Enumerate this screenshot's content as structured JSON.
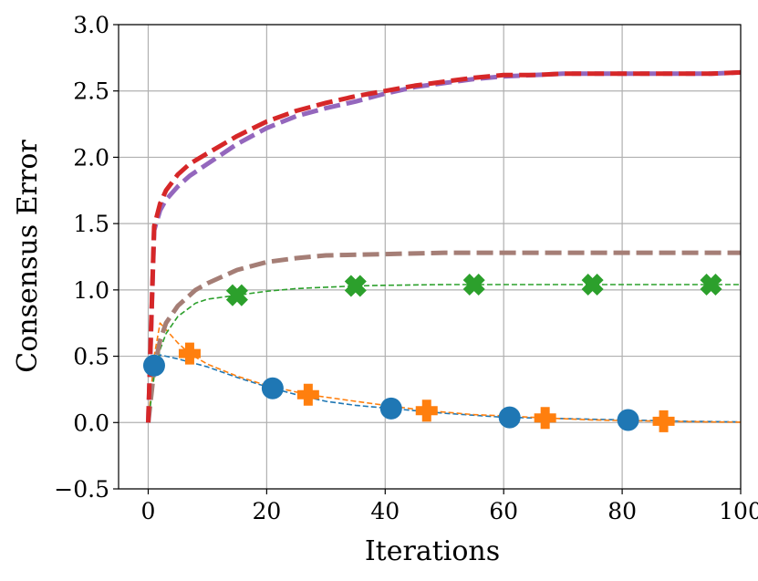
{
  "chart_data": {
    "type": "line",
    "title": "",
    "xlabel": "Iterations",
    "ylabel": "Consensus Error",
    "xlim": [
      -5,
      100
    ],
    "ylim": [
      -0.5,
      3.0
    ],
    "xticks": [
      0,
      20,
      40,
      60,
      80,
      100
    ],
    "yticks": [
      -0.5,
      0.0,
      0.5,
      1.0,
      1.5,
      2.0,
      2.5,
      3.0
    ],
    "xtick_labels": [
      "0",
      "20",
      "40",
      "60",
      "80",
      "100"
    ],
    "ytick_labels": [
      "−0.5",
      "0.0",
      "0.5",
      "1.0",
      "1.5",
      "2.0",
      "2.5",
      "3.0"
    ],
    "grid": true,
    "series": [
      {
        "name": "series-blue",
        "color": "#1f77b4",
        "style": "dashed-thin",
        "marker": "circle",
        "marker_x": [
          1,
          21,
          41,
          61,
          81
        ],
        "x": [
          0,
          1,
          2,
          5,
          10,
          15,
          20,
          25,
          30,
          35,
          40,
          50,
          60,
          70,
          80,
          90,
          100
        ],
        "y": [
          0.0,
          0.43,
          0.51,
          0.48,
          0.42,
          0.34,
          0.27,
          0.21,
          0.16,
          0.13,
          0.11,
          0.07,
          0.04,
          0.03,
          0.02,
          0.01,
          0.005
        ]
      },
      {
        "name": "series-orange",
        "color": "#ff7f0e",
        "style": "dashed-thin",
        "marker": "plus",
        "marker_x": [
          7,
          27,
          47,
          67,
          87
        ],
        "x": [
          0,
          1,
          2,
          5,
          7,
          10,
          15,
          20,
          27,
          35,
          40,
          47,
          55,
          60,
          67,
          75,
          80,
          87,
          95,
          100
        ],
        "y": [
          0.0,
          0.5,
          0.75,
          0.6,
          0.52,
          0.44,
          0.35,
          0.28,
          0.21,
          0.16,
          0.13,
          0.09,
          0.06,
          0.05,
          0.035,
          0.02,
          0.015,
          0.01,
          0.005,
          0.003
        ]
      },
      {
        "name": "series-green",
        "color": "#2ca02c",
        "style": "dashed-thin",
        "marker": "x",
        "marker_x": [
          15,
          35,
          55,
          75,
          95
        ],
        "x": [
          0,
          1,
          2,
          3,
          5,
          8,
          10,
          15,
          20,
          25,
          30,
          35,
          40,
          50,
          60,
          70,
          80,
          90,
          100
        ],
        "y": [
          0.0,
          0.35,
          0.55,
          0.67,
          0.8,
          0.9,
          0.93,
          0.96,
          0.99,
          1.01,
          1.02,
          1.03,
          1.035,
          1.04,
          1.04,
          1.04,
          1.04,
          1.04,
          1.04
        ]
      },
      {
        "name": "series-brown",
        "color": "#a57e76",
        "style": "dashed-thick",
        "marker": "",
        "marker_x": [],
        "x": [
          0,
          1,
          2,
          3,
          5,
          8,
          10,
          15,
          20,
          25,
          30,
          40,
          50,
          60,
          70,
          80,
          90,
          100
        ],
        "y": [
          0.0,
          0.4,
          0.62,
          0.75,
          0.88,
          1.0,
          1.05,
          1.15,
          1.21,
          1.24,
          1.26,
          1.27,
          1.28,
          1.28,
          1.28,
          1.28,
          1.28,
          1.28
        ]
      },
      {
        "name": "series-purple",
        "color": "#9467bd",
        "style": "dashed-thick",
        "marker": "",
        "marker_x": [],
        "x": [
          0,
          1,
          2,
          3,
          5,
          7,
          10,
          15,
          20,
          25,
          30,
          35,
          40,
          45,
          50,
          55,
          60,
          65,
          70,
          75,
          80,
          85,
          90,
          95,
          100
        ],
        "y": [
          0.0,
          1.45,
          1.6,
          1.68,
          1.78,
          1.86,
          1.95,
          2.1,
          2.22,
          2.31,
          2.37,
          2.42,
          2.48,
          2.53,
          2.56,
          2.59,
          2.61,
          2.62,
          2.63,
          2.63,
          2.63,
          2.63,
          2.63,
          2.63,
          2.64
        ]
      },
      {
        "name": "series-red",
        "color": "#d62728",
        "style": "dashed-thick",
        "marker": "",
        "marker_x": [],
        "x": [
          0,
          1,
          2,
          3,
          5,
          7,
          10,
          15,
          20,
          25,
          30,
          35,
          40,
          45,
          50,
          55,
          60,
          65,
          70,
          75,
          80,
          85,
          90,
          95,
          100
        ],
        "y": [
          0.0,
          1.48,
          1.65,
          1.75,
          1.87,
          1.95,
          2.03,
          2.16,
          2.27,
          2.35,
          2.41,
          2.46,
          2.5,
          2.54,
          2.57,
          2.6,
          2.62,
          2.62,
          2.63,
          2.63,
          2.63,
          2.63,
          2.63,
          2.63,
          2.64
        ]
      }
    ]
  }
}
